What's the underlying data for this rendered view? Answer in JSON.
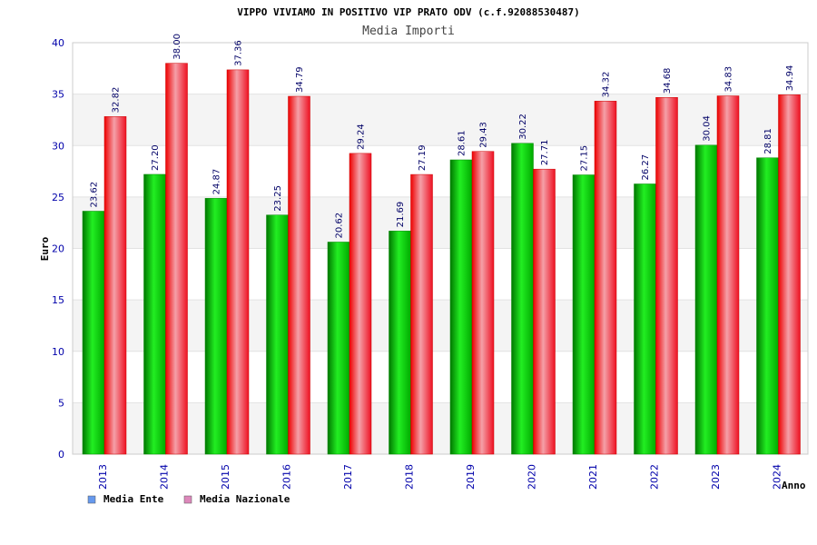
{
  "chart_data": {
    "type": "bar",
    "title": "VIPPO VIVIAMO IN POSITIVO VIP PRATO ODV (c.f.92088530487)",
    "subtitle": "Media Importi",
    "xlabel": "Anno",
    "ylabel": "Euro",
    "ylim": [
      0,
      40
    ],
    "yticks": [
      "0",
      "5",
      "10",
      "15",
      "20",
      "25",
      "30",
      "35",
      "40"
    ],
    "grid": true,
    "legend_position": "bottom-left",
    "categories": [
      "2013",
      "2014",
      "2015",
      "2016",
      "2017",
      "2018",
      "2019",
      "2020",
      "2021",
      "2022",
      "2023",
      "2024"
    ],
    "series": [
      {
        "name": "Media Ente",
        "color": "#00aa00",
        "legend_color": "#6699ee",
        "values": [
          23.62,
          27.2,
          24.87,
          23.25,
          20.62,
          21.69,
          28.61,
          30.22,
          27.15,
          26.27,
          30.04,
          28.81
        ],
        "labels": [
          "23.62",
          "27.20",
          "24.87",
          "23.25",
          "20.62",
          "21.69",
          "28.61",
          "30.22",
          "27.15",
          "26.27",
          "30.04",
          "28.81"
        ]
      },
      {
        "name": "Media Nazionale",
        "color": "#ee1122",
        "legend_color": "#dd88bb",
        "values": [
          32.82,
          38.0,
          37.36,
          34.79,
          29.24,
          27.19,
          29.43,
          27.71,
          34.32,
          34.68,
          34.83,
          34.94
        ],
        "labels": [
          "32.82",
          "38.00",
          "37.36",
          "34.79",
          "29.24",
          "27.19",
          "29.43",
          "27.71",
          "34.32",
          "34.68",
          "34.83",
          "34.94"
        ]
      }
    ]
  }
}
